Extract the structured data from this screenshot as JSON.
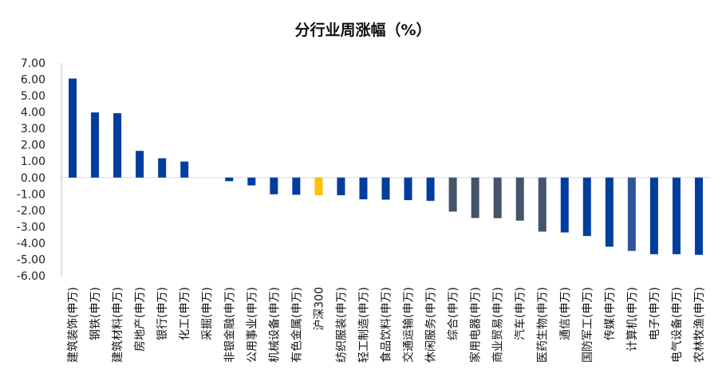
{
  "chart_data": {
    "type": "bar",
    "title": "分行业周涨幅（%）",
    "xlabel": "",
    "ylabel": "",
    "ylim": [
      -6,
      7
    ],
    "ytick_labels": [
      "7.00",
      "6.00",
      "5.00",
      "4.00",
      "3.00",
      "2.00",
      "1.00",
      "0.00",
      "-1.00",
      "-2.00",
      "-3.00",
      "-4.00",
      "-5.00",
      "-6.00"
    ],
    "grid": false,
    "legend": "none",
    "categories": [
      "建筑装饰(申万)",
      "钢铁(申万)",
      "建筑材料(申万)",
      "房地产(申万)",
      "银行(申万)",
      "化工(申万)",
      "采掘(申万)",
      "非银金融(申万)",
      "公用事业(申万)",
      "机械设备(申万)",
      "有色金属(申万)",
      "沪深300",
      "纺织服装(申万)",
      "轻工制造(申万)",
      "食品饮料(申万)",
      "交通运输(申万)",
      "休闲服务(申万)",
      "综合(申万)",
      "家用电器(申万)",
      "商业贸易(申万)",
      "汽车(申万)",
      "医药生物(申万)",
      "通信(申万)",
      "国防军工(申万)",
      "传媒(申万)",
      "计算机(申万)",
      "电子(申万)",
      "电气设备(申万)",
      "农林牧渔(申万)"
    ],
    "values": [
      6.05,
      3.98,
      3.93,
      1.63,
      1.18,
      0.98,
      0.0,
      -0.22,
      -0.48,
      -1.02,
      -1.05,
      -1.08,
      -1.08,
      -1.33,
      -1.35,
      -1.38,
      -1.42,
      -2.08,
      -2.47,
      -2.48,
      -2.63,
      -3.3,
      -3.35,
      -3.57,
      -4.22,
      -4.48,
      -4.68,
      -4.68,
      -4.72
    ],
    "colors": {
      "default": "#003E9E",
      "highlight": "#FFC000",
      "muted": "#44546A",
      "light": "#2F5597"
    },
    "bar_colors": [
      "default",
      "default",
      "default",
      "default",
      "default",
      "default",
      "default",
      "default",
      "default",
      "default",
      "default",
      "highlight",
      "default",
      "default",
      "default",
      "default",
      "default",
      "muted",
      "muted",
      "muted",
      "muted",
      "muted",
      "default",
      "default",
      "default",
      "light",
      "default",
      "default",
      "default"
    ]
  }
}
